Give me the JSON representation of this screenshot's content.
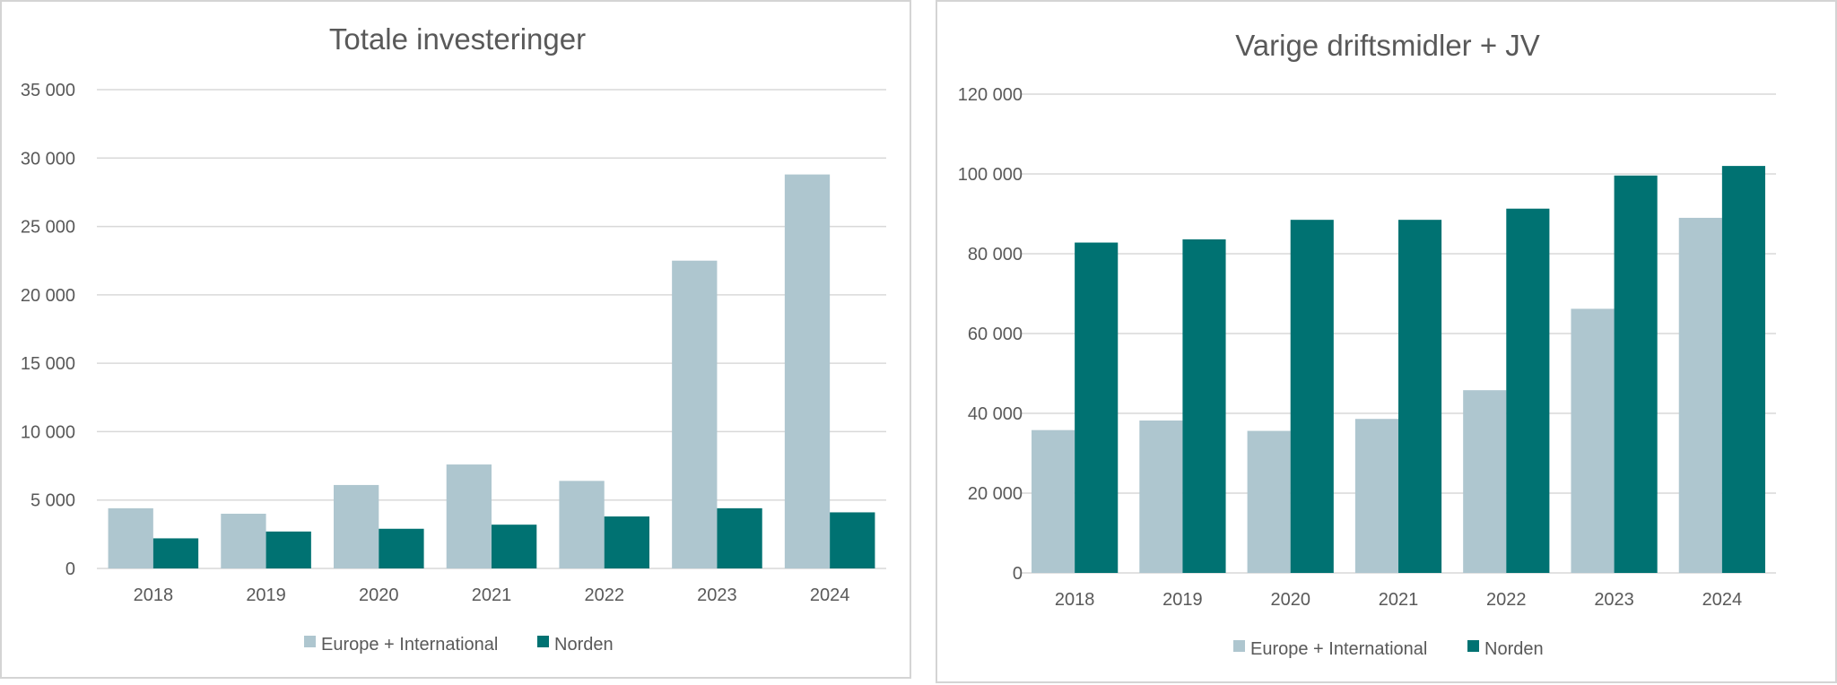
{
  "colors": {
    "europe": "#aec6cf",
    "norden": "#007272"
  },
  "chart_data": [
    {
      "type": "bar",
      "title": "Totale investeringer",
      "categories": [
        "2018",
        "2019",
        "2020",
        "2021",
        "2022",
        "2023",
        "2024"
      ],
      "series": [
        {
          "name": "Europe + International",
          "values": [
            4400,
            4000,
            6100,
            7600,
            6400,
            22500,
            28800
          ]
        },
        {
          "name": "Norden",
          "values": [
            2200,
            2700,
            2900,
            3200,
            3800,
            4400,
            4100
          ]
        }
      ],
      "ylim": [
        0,
        35000
      ],
      "yticks": [
        0,
        5000,
        10000,
        15000,
        20000,
        25000,
        30000,
        35000
      ],
      "ytick_labels": [
        "0",
        "5 000",
        "10 000",
        "15 000",
        "20 000",
        "25 000",
        "30 000",
        "35 000"
      ],
      "grid": true,
      "legend": "bottom"
    },
    {
      "type": "bar",
      "title": "Varige driftsmidler + JV",
      "categories": [
        "2018",
        "2019",
        "2020",
        "2021",
        "2022",
        "2023",
        "2024"
      ],
      "series": [
        {
          "name": "Europe + International",
          "values": [
            35800,
            38200,
            35600,
            38600,
            45800,
            66200,
            89000
          ]
        },
        {
          "name": "Norden",
          "values": [
            82800,
            83600,
            88500,
            88500,
            91300,
            99600,
            102000
          ]
        }
      ],
      "ylim": [
        0,
        120000
      ],
      "yticks": [
        0,
        20000,
        40000,
        60000,
        80000,
        100000,
        120000
      ],
      "ytick_labels": [
        "0",
        "20 000",
        "40 000",
        "60 000",
        "80 000",
        "100 000",
        "120 000"
      ],
      "grid": true,
      "legend": "bottom"
    }
  ]
}
